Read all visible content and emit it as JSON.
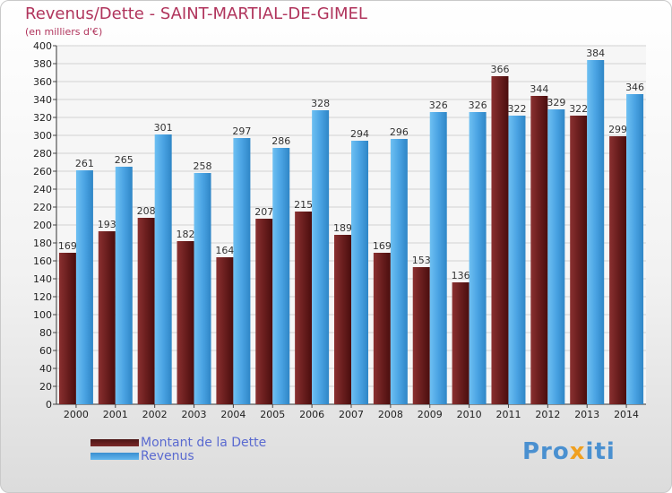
{
  "title": "Revenus/Dette - SAINT-MARTIAL-DE-GIMEL",
  "subtitle": "(en milliers d'€)",
  "chart_data": {
    "type": "bar",
    "title": "Revenus/Dette - SAINT-MARTIAL-DE-GIMEL",
    "ylabel": "(en milliers d'€)",
    "xlabel": "",
    "ylim": [
      0,
      400
    ],
    "ytick_step": 20,
    "grid": true,
    "categories": [
      "2000",
      "2001",
      "2002",
      "2003",
      "2004",
      "2005",
      "2006",
      "2007",
      "2008",
      "2009",
      "2010",
      "2011",
      "2012",
      "2013",
      "2014"
    ],
    "series": [
      {
        "name": "Montant de la Dette",
        "color": "#7a2828",
        "values": [
          169,
          193,
          208,
          182,
          164,
          207,
          215,
          189,
          169,
          153,
          136,
          366,
          344,
          322,
          299
        ]
      },
      {
        "name": "Revenus",
        "color": "#4aa3e3",
        "values": [
          261,
          265,
          301,
          258,
          297,
          286,
          328,
          294,
          296,
          326,
          326,
          322,
          329,
          384,
          346
        ]
      }
    ]
  },
  "legend": {
    "debt_label": "Montant de la Dette",
    "revenue_label": "Revenus"
  },
  "logo": {
    "first": "Pro",
    "x": "x",
    "rest": "iti"
  }
}
